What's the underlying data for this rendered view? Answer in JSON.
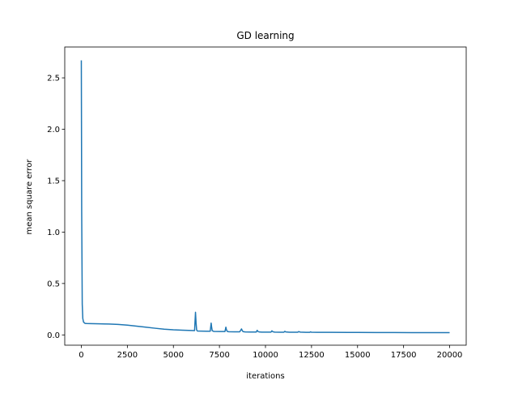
{
  "chart_data": {
    "type": "line",
    "title": "GD learning",
    "xlabel": "iterations",
    "ylabel": "mean square error",
    "xlim": [
      -900,
      20900
    ],
    "ylim": [
      -0.1,
      2.8
    ],
    "xticks": [
      0,
      2500,
      5000,
      7500,
      10000,
      12500,
      15000,
      17500,
      20000
    ],
    "yticks": [
      0.0,
      0.5,
      1.0,
      1.5,
      2.0,
      2.5
    ],
    "xtick_labels": [
      "0",
      "2500",
      "5000",
      "7500",
      "10000",
      "12500",
      "15000",
      "17500",
      "20000"
    ],
    "ytick_labels": [
      "0.0",
      "0.5",
      "1.0",
      "1.5",
      "2.0",
      "2.5"
    ],
    "grid": false,
    "legend": "none",
    "series": [
      {
        "color": "#1f77b4",
        "x": [
          0,
          20,
          50,
          80,
          120,
          200,
          300,
          500,
          1000,
          1500,
          2000,
          2500,
          3000,
          3500,
          4000,
          4500,
          5000,
          5500,
          6000,
          6150,
          6200,
          6230,
          6260,
          6300,
          6500,
          6800,
          7000,
          7050,
          7080,
          7110,
          7200,
          7500,
          7800,
          7850,
          7880,
          7920,
          8000,
          8300,
          8600,
          8700,
          8730,
          8780,
          8900,
          9200,
          9500,
          9550,
          9580,
          9650,
          9800,
          10100,
          10300,
          10350,
          10400,
          10500,
          10800,
          11000,
          11050,
          11100,
          11300,
          11600,
          11750,
          11800,
          11900,
          12200,
          12400,
          12450,
          12500,
          12800,
          13500,
          14500,
          15000,
          16000,
          17000,
          18000,
          19000,
          20000
        ],
        "y": [
          2.67,
          1.2,
          0.3,
          0.16,
          0.125,
          0.112,
          0.111,
          0.11,
          0.108,
          0.106,
          0.102,
          0.095,
          0.085,
          0.075,
          0.065,
          0.056,
          0.05,
          0.046,
          0.043,
          0.042,
          0.22,
          0.12,
          0.05,
          0.038,
          0.037,
          0.036,
          0.036,
          0.115,
          0.07,
          0.04,
          0.034,
          0.033,
          0.033,
          0.075,
          0.05,
          0.035,
          0.031,
          0.03,
          0.03,
          0.058,
          0.045,
          0.032,
          0.029,
          0.028,
          0.028,
          0.045,
          0.035,
          0.029,
          0.027,
          0.027,
          0.027,
          0.04,
          0.031,
          0.027,
          0.026,
          0.026,
          0.035,
          0.029,
          0.026,
          0.026,
          0.026,
          0.032,
          0.027,
          0.025,
          0.025,
          0.03,
          0.026,
          0.025,
          0.025,
          0.024,
          0.024,
          0.023,
          0.023,
          0.022,
          0.022,
          0.022
        ]
      }
    ]
  }
}
